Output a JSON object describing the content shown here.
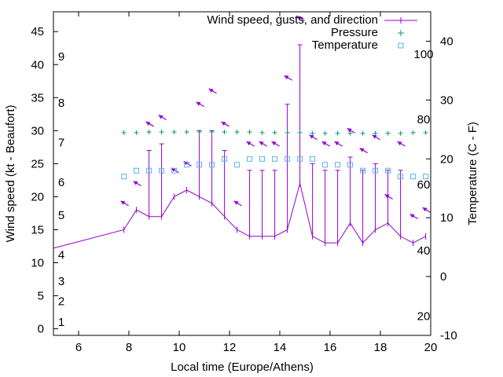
{
  "chart_data": {
    "type": "line",
    "title": "",
    "xlabel": "Local time (Europe/Athens)",
    "ylabel": "Wind speed (kt - Beaufort)",
    "y2label": "Temperature (C - F)",
    "xlim": [
      5,
      20
    ],
    "ylim": [
      -1,
      48
    ],
    "y2lim": [
      -10,
      45
    ],
    "grid": false,
    "legend_position": "top-right",
    "x_ticks": [
      6,
      8,
      10,
      12,
      14,
      16,
      18,
      20
    ],
    "y_ticks": [
      0,
      5,
      10,
      15,
      20,
      25,
      30,
      35,
      40,
      45
    ],
    "y2_ticks": [
      -10,
      0,
      10,
      20,
      30,
      40
    ],
    "beaufort_labels": [
      {
        "label": "1",
        "y": 1
      },
      {
        "label": "2",
        "y": 4.2
      },
      {
        "label": "3",
        "y": 7.2
      },
      {
        "label": "4",
        "y": 11.2
      },
      {
        "label": "5",
        "y": 17.2
      },
      {
        "label": "6",
        "y": 22.2
      },
      {
        "label": "7",
        "y": 28.2
      },
      {
        "label": "8",
        "y": 34.2
      },
      {
        "label": "9",
        "y": 41.2
      }
    ],
    "fahrenheit_labels": [
      {
        "label": "20",
        "y2": -6.7
      },
      {
        "label": "40",
        "y2": 4.4
      },
      {
        "label": "60",
        "y2": 15.6
      },
      {
        "label": "80",
        "y2": 26.7
      },
      {
        "label": "100",
        "y2": 37.8
      }
    ],
    "series": [
      {
        "name": "Wind speed, gusts, and direction",
        "color": "#9400d3",
        "x": [
          4.8,
          7.8,
          8.3,
          8.8,
          9.3,
          9.8,
          10.3,
          10.8,
          11.3,
          11.8,
          12.3,
          12.8,
          13.3,
          13.8,
          14.3,
          14.8,
          15.3,
          15.8,
          16.3,
          16.8,
          17.3,
          17.8,
          18.3,
          18.8,
          19.3,
          19.8
        ],
        "values": [
          12,
          15,
          18,
          17,
          17,
          20,
          21,
          20,
          19,
          17,
          15,
          14,
          14,
          14,
          15,
          22,
          14,
          13,
          13,
          16,
          13,
          15,
          16,
          14,
          13,
          14
        ],
        "gusts": [
          null,
          null,
          null,
          27,
          28,
          null,
          null,
          30,
          30,
          27,
          null,
          24,
          24,
          24,
          34,
          43,
          25,
          24,
          24,
          26,
          24,
          25,
          24,
          24,
          null,
          null
        ],
        "direction_arrows": [
          {
            "x": 7.8,
            "y": 19
          },
          {
            "x": 8.3,
            "y": 22
          },
          {
            "x": 8.8,
            "y": 31
          },
          {
            "x": 9.3,
            "y": 32
          },
          {
            "x": 9.8,
            "y": 24
          },
          {
            "x": 10.3,
            "y": 25
          },
          {
            "x": 10.8,
            "y": 34
          },
          {
            "x": 11.3,
            "y": 36
          },
          {
            "x": 11.8,
            "y": 31
          },
          {
            "x": 12.3,
            "y": 19
          },
          {
            "x": 12.8,
            "y": 28
          },
          {
            "x": 13.3,
            "y": 28
          },
          {
            "x": 13.8,
            "y": 28
          },
          {
            "x": 14.3,
            "y": 38
          },
          {
            "x": 14.8,
            "y": 47
          },
          {
            "x": 15.3,
            "y": 29
          },
          {
            "x": 15.8,
            "y": 28
          },
          {
            "x": 16.3,
            "y": 28
          },
          {
            "x": 16.8,
            "y": 30
          },
          {
            "x": 17.3,
            "y": 27
          },
          {
            "x": 17.8,
            "y": 29
          },
          {
            "x": 18.3,
            "y": 20
          },
          {
            "x": 18.8,
            "y": 28
          },
          {
            "x": 19.3,
            "y": 17
          },
          {
            "x": 19.8,
            "y": 18
          }
        ]
      },
      {
        "name": "Pressure",
        "color": "#009e73",
        "x": [
          7.8,
          8.3,
          8.8,
          9.3,
          9.8,
          10.3,
          10.8,
          11.3,
          11.8,
          12.3,
          12.8,
          13.3,
          13.8,
          14.3,
          14.8,
          15.3,
          15.8,
          16.3,
          16.8,
          17.3,
          17.8,
          18.3,
          18.8,
          19.3,
          19.8
        ],
        "values": [
          29.7,
          29.7,
          29.8,
          29.8,
          29.8,
          29.8,
          29.8,
          29.8,
          29.8,
          29.8,
          29.8,
          29.7,
          29.7,
          29.7,
          29.7,
          29.6,
          29.6,
          29.6,
          29.6,
          29.6,
          29.6,
          29.6,
          29.6,
          29.7,
          29.7
        ]
      },
      {
        "name": "Temperature",
        "color": "#56b4e9",
        "axis": "y2",
        "x": [
          7.8,
          8.3,
          8.8,
          9.3,
          9.8,
          10.3,
          10.8,
          11.3,
          11.8,
          12.3,
          12.8,
          13.3,
          13.8,
          14.3,
          14.8,
          15.3,
          15.8,
          16.3,
          16.8,
          17.3,
          17.8,
          18.3,
          18.8,
          19.3,
          19.8
        ],
        "values": [
          17,
          18,
          18,
          18,
          18,
          19,
          19,
          19,
          20,
          19,
          20,
          20,
          20,
          20,
          20,
          20,
          19,
          19,
          19,
          18,
          18,
          18,
          17,
          17,
          17
        ]
      }
    ]
  }
}
